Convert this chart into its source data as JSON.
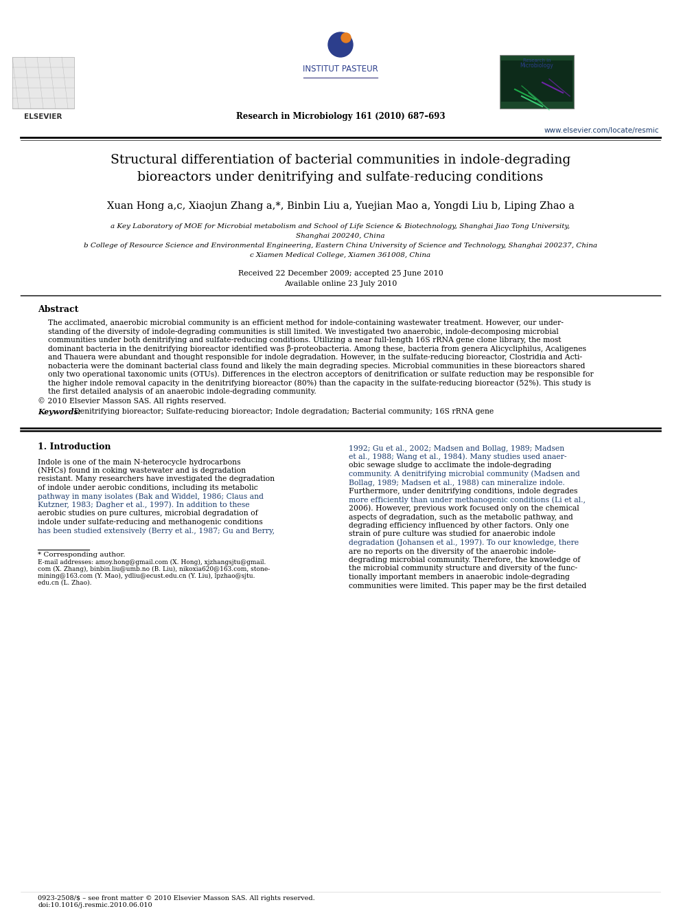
{
  "bg_color": "#ffffff",
  "journal_name": "Research in Microbiology 161 (2010) 687–693",
  "website": "www.elsevier.com/locate/resmic",
  "institut_pasteur": "INSTITUT PASTEUR",
  "title_line1": "Structural differentiation of bacterial communities in indole-degrading",
  "title_line2": "bioreactors under denitrifying and sulfate-reducing conditions",
  "authors": "Xuan Hong a,c, Xiaojun Zhang a,*, Binbin Liu a, Yuejian Mao a, Yongdi Liu b, Liping Zhao a",
  "affil_a": "a Key Laboratory of MOE for Microbial metabolism and School of Life Science & Biotechnology, Shanghai Jiao Tong University,",
  "affil_a2": "Shanghai 200240, China",
  "affil_b": "b College of Resource Science and Environmental Engineering, Eastern China University of Science and Technology, Shanghai 200237, China",
  "affil_c": "c Xiamen Medical College, Xiamen 361008, China",
  "received": "Received 22 December 2009; accepted 25 June 2010",
  "available": "Available online 23 July 2010",
  "abstract_title": "Abstract",
  "copyright": "© 2010 Elsevier Masson SAS. All rights reserved.",
  "keywords_label": "Keywords:",
  "keywords_text": "Denitrifying bioreactor; Sulfate-reducing bioreactor; Indole degradation; Bacterial community; 16S rRNA gene",
  "section1_title": "1. Introduction",
  "footnote_star": "* Corresponding author.",
  "issn": "0923-2508/$ – see front matter © 2010 Elsevier Masson SAS. All rights reserved.",
  "doi": "doi:10.1016/j.resmic.2010.06.010",
  "link_color": "#1a3a6b",
  "separator_color": "#333333",
  "abstract_lines": [
    "The acclimated, anaerobic microbial community is an efficient method for indole-containing wastewater treatment. However, our under-",
    "standing of the diversity of indole-degrading communities is still limited. We investigated two anaerobic, indole-decomposing microbial",
    "communities under both denitrifying and sulfate-reducing conditions. Utilizing a near full-length 16S rRNA gene clone library, the most",
    "dominant bacteria in the denitrifying bioreactor identified was β-proteobacteria. Among these, bacteria from genera Alicycliphilus, Acaligenes",
    "and Thauera were abundant and thought responsible for indole degradation. However, in the sulfate-reducing bioreactor, Clostridia and Acti-",
    "nobacteria were the dominant bacterial class found and likely the main degrading species. Microbial communities in these bioreactors shared",
    "only two operational taxonomic units (OTUs). Differences in the electron acceptors of denitrification or sulfate reduction may be responsible for",
    "the higher indole removal capacity in the denitrifying bioreactor (80%) than the capacity in the sulfate-reducing bioreactor (52%). This study is",
    "the first detailed analysis of an anaerobic indole-degrading community."
  ],
  "intro1_lines": [
    "Indole is one of the main N-heterocycle hydrocarbons",
    "(NHCs) found in coking wastewater and is degradation",
    "resistant. Many researchers have investigated the degradation",
    "of indole under aerobic conditions, including its metabolic",
    "pathway in many isolates (Bak and Widdel, 1986; Claus and",
    "Kutzner, 1983; Dagher et al., 1997). In addition to these",
    "aerobic studies on pure cultures, microbial degradation of",
    "indole under sulfate-reducing and methanogenic conditions",
    "has been studied extensively (Berry et al., 1987; Gu and Berry,"
  ],
  "intro1_link_lines": [
    4,
    5,
    8
  ],
  "intro2_lines": [
    "1992; Gu et al., 2002; Madsen and Bollag, 1989; Madsen",
    "et al., 1988; Wang et al., 1984). Many studies used anaer-",
    "obic sewage sludge to acclimate the indole-degrading",
    "community. A denitrifying microbial community (Madsen and",
    "Bollag, 1989; Madsen et al., 1988) can mineralize indole.",
    "Furthermore, under denitrifying conditions, indole degrades",
    "more efficiently than under methanogenic conditions (Li et al.,",
    "2006). However, previous work focused only on the chemical",
    "aspects of degradation, such as the metabolic pathway, and",
    "degrading efficiency influenced by other factors. Only one",
    "strain of pure culture was studied for anaerobic indole",
    "degradation (Johansen et al., 1997). To our knowledge, there",
    "are no reports on the diversity of the anaerobic indole-",
    "degrading microbial community. Therefore, the knowledge of",
    "the microbial community structure and diversity of the func-",
    "tionally important members in anaerobic indole-degrading",
    "communities were limited. This paper may be the first detailed"
  ],
  "intro2_link_lines": [
    0,
    1,
    3,
    4,
    6,
    11
  ],
  "footnote_email_lines": [
    "E-mail addresses: amoy.hong@gmail.com (X. Hong), xjzhangsjtu@gmail.",
    "com (X. Zhang), binbin.liu@umb.no (B. Liu), nikoxia620@163.com, stone-",
    "mining@163.com (Y. Mao), ydliu@ecust.edu.cn (Y. Liu), lpzhao@sjtu.",
    "edu.cn (L. Zhao)."
  ]
}
